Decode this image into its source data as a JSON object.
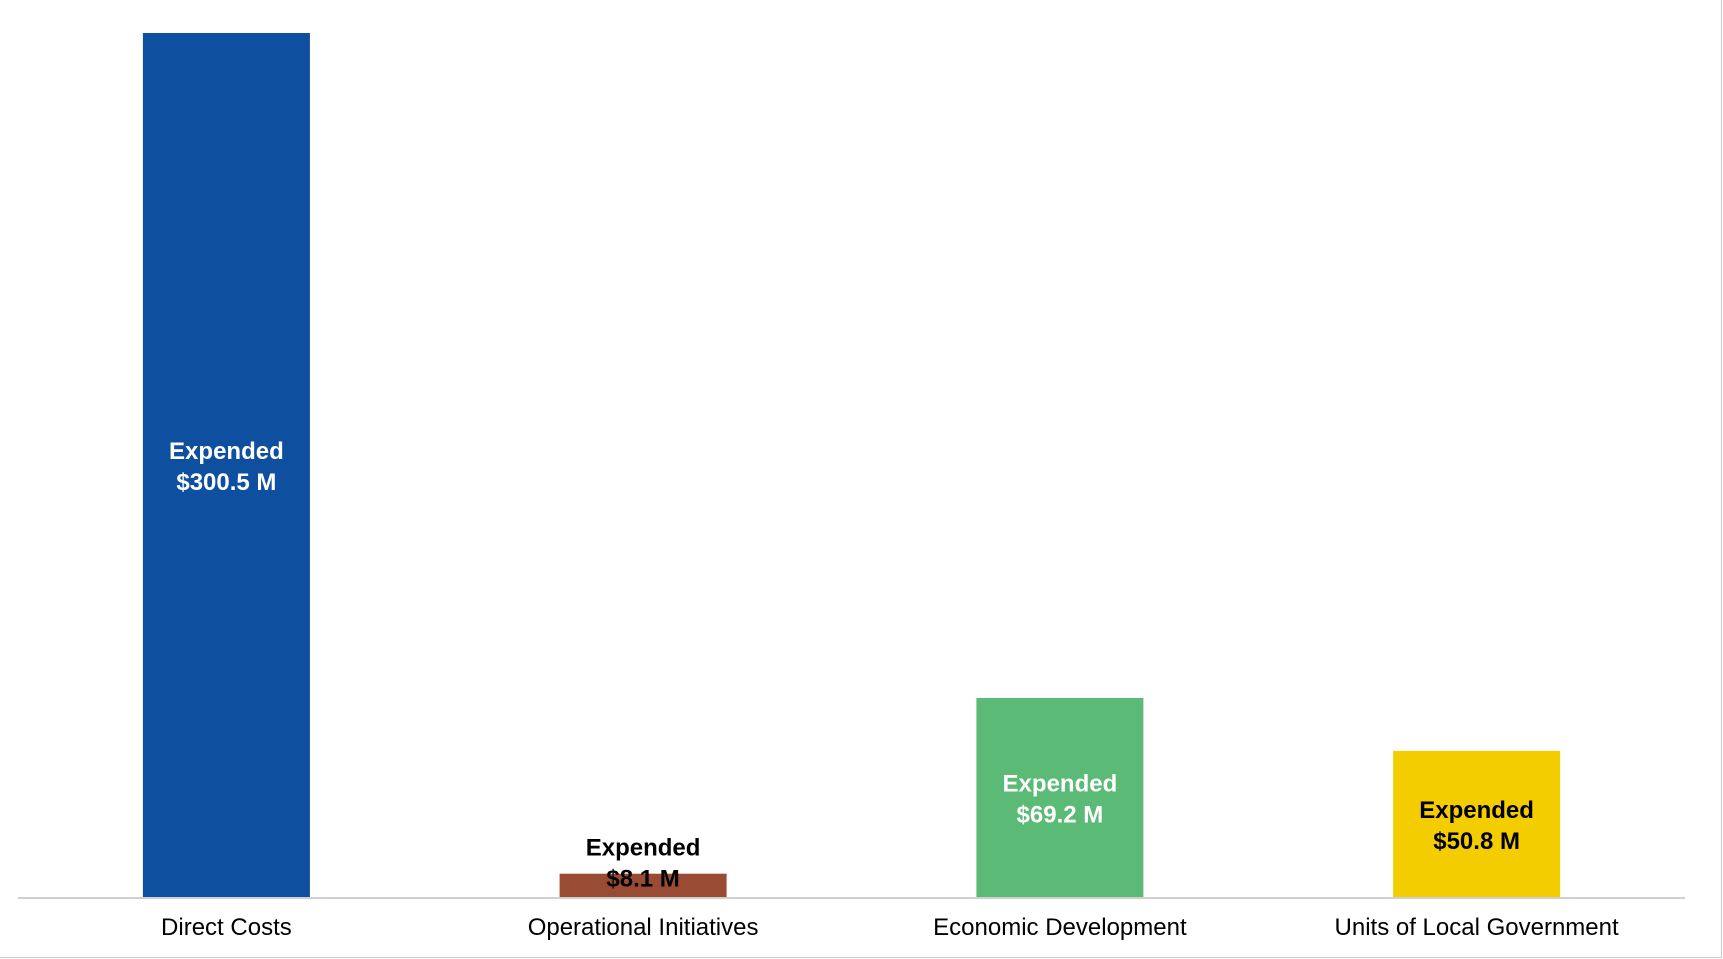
{
  "chart_data": {
    "type": "bar",
    "title": "",
    "xlabel": "",
    "ylabel": "",
    "ylim": [
      0,
      300.5
    ],
    "grid": false,
    "legend": "none",
    "categories": [
      "Direct Costs",
      "Operational Initiatives",
      "Economic Development",
      "Units of Local Government"
    ],
    "values": [
      300.5,
      8.1,
      69.2,
      50.8
    ],
    "labels": [
      {
        "line1": "Expended",
        "line2": "$300.5 M"
      },
      {
        "line1": "Expended",
        "line2": "$8.1 M"
      },
      {
        "line1": "Expended",
        "line2": "$69.2 M"
      },
      {
        "line1": "Expended",
        "line2": "$50.8 M"
      }
    ],
    "colors": [
      "#0e4fa0",
      "#9a4b33",
      "#5bba76",
      "#f3cd00"
    ],
    "label_colors": [
      "#ffffff",
      "#000000",
      "#ffffff",
      "#000000"
    ],
    "axis_color": "#d0d0d0"
  }
}
